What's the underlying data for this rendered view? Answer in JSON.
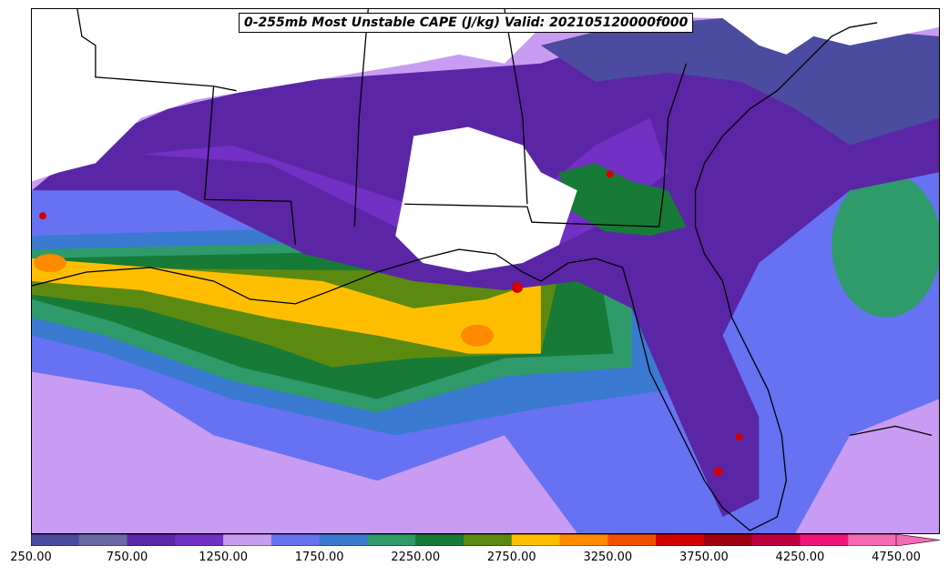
{
  "map": {
    "title": "0-255mb Most Unstable CAPE (J/kg) Valid: 202105120000f000",
    "no_data_color": "#ffffff",
    "border_color": "#000000"
  },
  "colorbar": {
    "levels_start": 250,
    "levels_step": 250,
    "colors": [
      "#4b4ba0",
      "#6a6aa6",
      "#5a26a6",
      "#7230c4",
      "#c89cf2",
      "#6672f2",
      "#3a7ad0",
      "#2f9a6a",
      "#177a36",
      "#5c8a10",
      "#ffbf00",
      "#ff8a00",
      "#f25000",
      "#d20000",
      "#9e0010",
      "#be0040",
      "#f0147a",
      "#f46ab4"
    ],
    "extend": "max",
    "tick_labels": [
      "250.00",
      "750.00",
      "1250.00",
      "1750.00",
      "2250.00",
      "2750.00",
      "3250.00",
      "3750.00",
      "4250.00",
      "4750.00"
    ]
  }
}
